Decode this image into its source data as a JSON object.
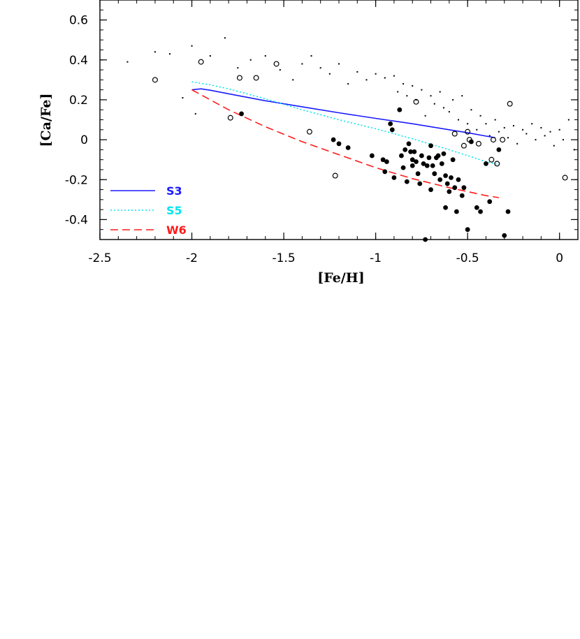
{
  "chart_data": {
    "type": "scatter",
    "title": "",
    "xlabel": "[Fe/H]",
    "ylabel": "[Ca/Fe]",
    "xlim": [
      -2.5,
      0.1
    ],
    "ylim": [
      -0.5,
      0.7
    ],
    "xticks": [
      -2.5,
      -2,
      -1.5,
      -1,
      -0.5,
      0
    ],
    "xtick_labels": [
      "-2.5",
      "-2",
      "-1.5",
      "-1",
      "-0.5",
      "0"
    ],
    "yticks": [
      -0.4,
      -0.2,
      0,
      0.2,
      0.4,
      0.6
    ],
    "ytick_labels": [
      "-0.4",
      "-0.2",
      "0",
      "0.2",
      "0.4",
      "0.6"
    ],
    "grid": false,
    "legend_position": "bottom-left",
    "colors": {
      "S3": "#1a1aff",
      "S5": "#00e5ee",
      "W6": "#ff1a1a",
      "points": "#000000"
    },
    "series": [
      {
        "name": "S3",
        "style": "solid",
        "color": "#1a1aff",
        "x": [
          -2.0,
          -1.95,
          -1.9,
          -1.8,
          -1.6,
          -1.4,
          -1.2,
          -1.0,
          -0.8,
          -0.6,
          -0.5,
          -0.4,
          -0.35
        ],
        "y": [
          0.25,
          0.255,
          0.248,
          0.23,
          0.195,
          0.165,
          0.135,
          0.107,
          0.08,
          0.05,
          0.035,
          0.018,
          0.01
        ]
      },
      {
        "name": "S5",
        "style": "dotted",
        "color": "#00e5ee",
        "x": [
          -2.0,
          -1.9,
          -1.8,
          -1.6,
          -1.4,
          -1.2,
          -1.0,
          -0.8,
          -0.6,
          -0.5,
          -0.4,
          -0.33
        ],
        "y": [
          0.29,
          0.275,
          0.255,
          0.205,
          0.15,
          0.1,
          0.055,
          0.005,
          -0.05,
          -0.08,
          -0.11,
          -0.125
        ]
      },
      {
        "name": "W6",
        "style": "dashed",
        "color": "#ff1a1a",
        "x": [
          -2.0,
          -1.9,
          -1.8,
          -1.6,
          -1.4,
          -1.2,
          -1.0,
          -0.8,
          -0.6,
          -0.5,
          -0.4,
          -0.33
        ],
        "y": [
          0.25,
          0.2,
          0.15,
          0.065,
          -0.01,
          -0.075,
          -0.14,
          -0.195,
          -0.24,
          -0.26,
          -0.28,
          -0.29
        ]
      }
    ],
    "open_circles": {
      "x": [
        -2.2,
        -1.95,
        -1.79,
        -1.74,
        -1.65,
        -1.54,
        -1.36,
        -1.22,
        -0.78,
        -0.57,
        -0.52,
        -0.5,
        -0.49,
        -0.44,
        -0.37,
        -0.36,
        -0.34,
        -0.31,
        -0.27,
        0.03
      ],
      "y": [
        0.3,
        0.39,
        0.11,
        0.31,
        0.31,
        0.38,
        0.04,
        -0.18,
        0.19,
        0.03,
        -0.03,
        0.04,
        0.0,
        -0.02,
        -0.1,
        0.0,
        -0.12,
        0.0,
        0.18,
        -0.19
      ]
    },
    "filled_circles": {
      "x": [
        -1.73,
        -1.23,
        -1.2,
        -1.15,
        -1.02,
        -0.96,
        -0.95,
        -0.94,
        -0.92,
        -0.91,
        -0.9,
        -0.87,
        -0.86,
        -0.85,
        -0.84,
        -0.83,
        -0.82,
        -0.81,
        -0.8,
        -0.8,
        -0.79,
        -0.78,
        -0.77,
        -0.76,
        -0.75,
        -0.74,
        -0.73,
        -0.72,
        -0.71,
        -0.7,
        -0.7,
        -0.69,
        -0.68,
        -0.67,
        -0.66,
        -0.65,
        -0.64,
        -0.63,
        -0.62,
        -0.62,
        -0.61,
        -0.6,
        -0.59,
        -0.58,
        -0.57,
        -0.56,
        -0.55,
        -0.53,
        -0.52,
        -0.5,
        -0.48,
        -0.45,
        -0.43,
        -0.4,
        -0.38,
        -0.33,
        -0.3,
        -0.28
      ],
      "y": [
        0.13,
        0.0,
        -0.02,
        -0.04,
        -0.08,
        -0.1,
        -0.16,
        -0.11,
        0.08,
        0.05,
        -0.19,
        0.15,
        -0.08,
        -0.14,
        -0.05,
        -0.21,
        -0.02,
        -0.06,
        -0.1,
        -0.13,
        -0.06,
        -0.11,
        -0.17,
        -0.22,
        -0.08,
        -0.12,
        -0.5,
        -0.13,
        -0.09,
        -0.25,
        -0.03,
        -0.13,
        -0.17,
        -0.09,
        -0.08,
        -0.2,
        -0.12,
        -0.07,
        -0.18,
        -0.34,
        -0.22,
        -0.26,
        -0.19,
        -0.1,
        -0.24,
        -0.36,
        -0.2,
        -0.28,
        -0.24,
        -0.45,
        -0.01,
        -0.34,
        -0.36,
        -0.12,
        -0.31,
        -0.05,
        -0.48,
        -0.36
      ]
    },
    "dots": {
      "x": [
        -2.35,
        -2.2,
        -2.12,
        -2.05,
        -2.0,
        -1.98,
        -1.9,
        -1.82,
        -1.75,
        -1.68,
        -1.6,
        -1.52,
        -1.45,
        -1.4,
        -1.35,
        -1.3,
        -1.25,
        -1.2,
        -1.15,
        -1.1,
        -1.05,
        -1.0,
        -0.95,
        -0.9,
        -0.88,
        -0.85,
        -0.83,
        -0.8,
        -0.78,
        -0.75,
        -0.73,
        -0.7,
        -0.68,
        -0.65,
        -0.63,
        -0.6,
        -0.58,
        -0.55,
        -0.53,
        -0.5,
        -0.48,
        -0.45,
        -0.43,
        -0.4,
        -0.38,
        -0.35,
        -0.33,
        -0.3,
        -0.28,
        -0.25,
        -0.23,
        -0.2,
        -0.18,
        -0.15,
        -0.13,
        -0.1,
        -0.08,
        -0.05,
        -0.03,
        0.0,
        0.02,
        0.05,
        0.08
      ],
      "y": [
        0.39,
        0.44,
        0.43,
        0.21,
        0.47,
        0.13,
        0.42,
        0.51,
        0.36,
        0.4,
        0.42,
        0.35,
        0.3,
        0.38,
        0.42,
        0.36,
        0.33,
        0.38,
        0.28,
        0.34,
        0.3,
        0.33,
        0.31,
        0.32,
        0.24,
        0.28,
        0.22,
        0.27,
        0.2,
        0.25,
        0.12,
        0.22,
        0.18,
        0.24,
        0.16,
        0.14,
        0.2,
        0.1,
        0.22,
        0.08,
        0.15,
        0.05,
        0.12,
        0.08,
        0.02,
        0.1,
        0.04,
        0.06,
        0.01,
        0.07,
        -0.02,
        0.05,
        0.03,
        0.08,
        0.0,
        0.06,
        0.02,
        0.04,
        -0.03,
        0.05,
        0.0,
        0.1,
        -0.05
      ]
    }
  },
  "legend": {
    "items": [
      {
        "label": "S3",
        "color": "#1a1aff",
        "style": "solid"
      },
      {
        "label": "S5",
        "color": "#00e5ee",
        "style": "dotted"
      },
      {
        "label": "W6",
        "color": "#ff1a1a",
        "style": "dashed"
      }
    ]
  }
}
